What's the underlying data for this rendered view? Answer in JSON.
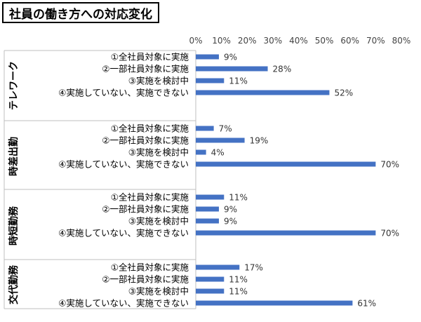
{
  "title": "社員の働き方への対応変化",
  "chart_data": {
    "type": "bar",
    "orientation": "horizontal",
    "title": "社員の働き方への対応変化",
    "xlim": [
      0,
      80
    ],
    "x_ticks": [
      "0%",
      "10%",
      "20%",
      "30%",
      "40%",
      "50%",
      "60%",
      "70%",
      "80%"
    ],
    "grid": false,
    "bar_color": "#4472c4",
    "categories": [
      "①全社員対象に実施",
      "②一部社員対象に実施",
      "③実施を検討中",
      "④実施していない、実施できない"
    ],
    "groups": [
      {
        "name": "テレワーク",
        "values": [
          9,
          28,
          11,
          52
        ],
        "labels": [
          "9%",
          "28%",
          "11%",
          "52%"
        ]
      },
      {
        "name": "時差出勤",
        "values": [
          7,
          19,
          4,
          70
        ],
        "labels": [
          "7%",
          "19%",
          "4%",
          "70%"
        ]
      },
      {
        "name": "時短勤務",
        "values": [
          11,
          9,
          9,
          70
        ],
        "labels": [
          "11%",
          "9%",
          "9%",
          "70%"
        ]
      },
      {
        "name": "交代勤務",
        "values": [
          17,
          11,
          11,
          61
        ],
        "labels": [
          "17%",
          "11%",
          "11%",
          "61%"
        ]
      }
    ]
  }
}
